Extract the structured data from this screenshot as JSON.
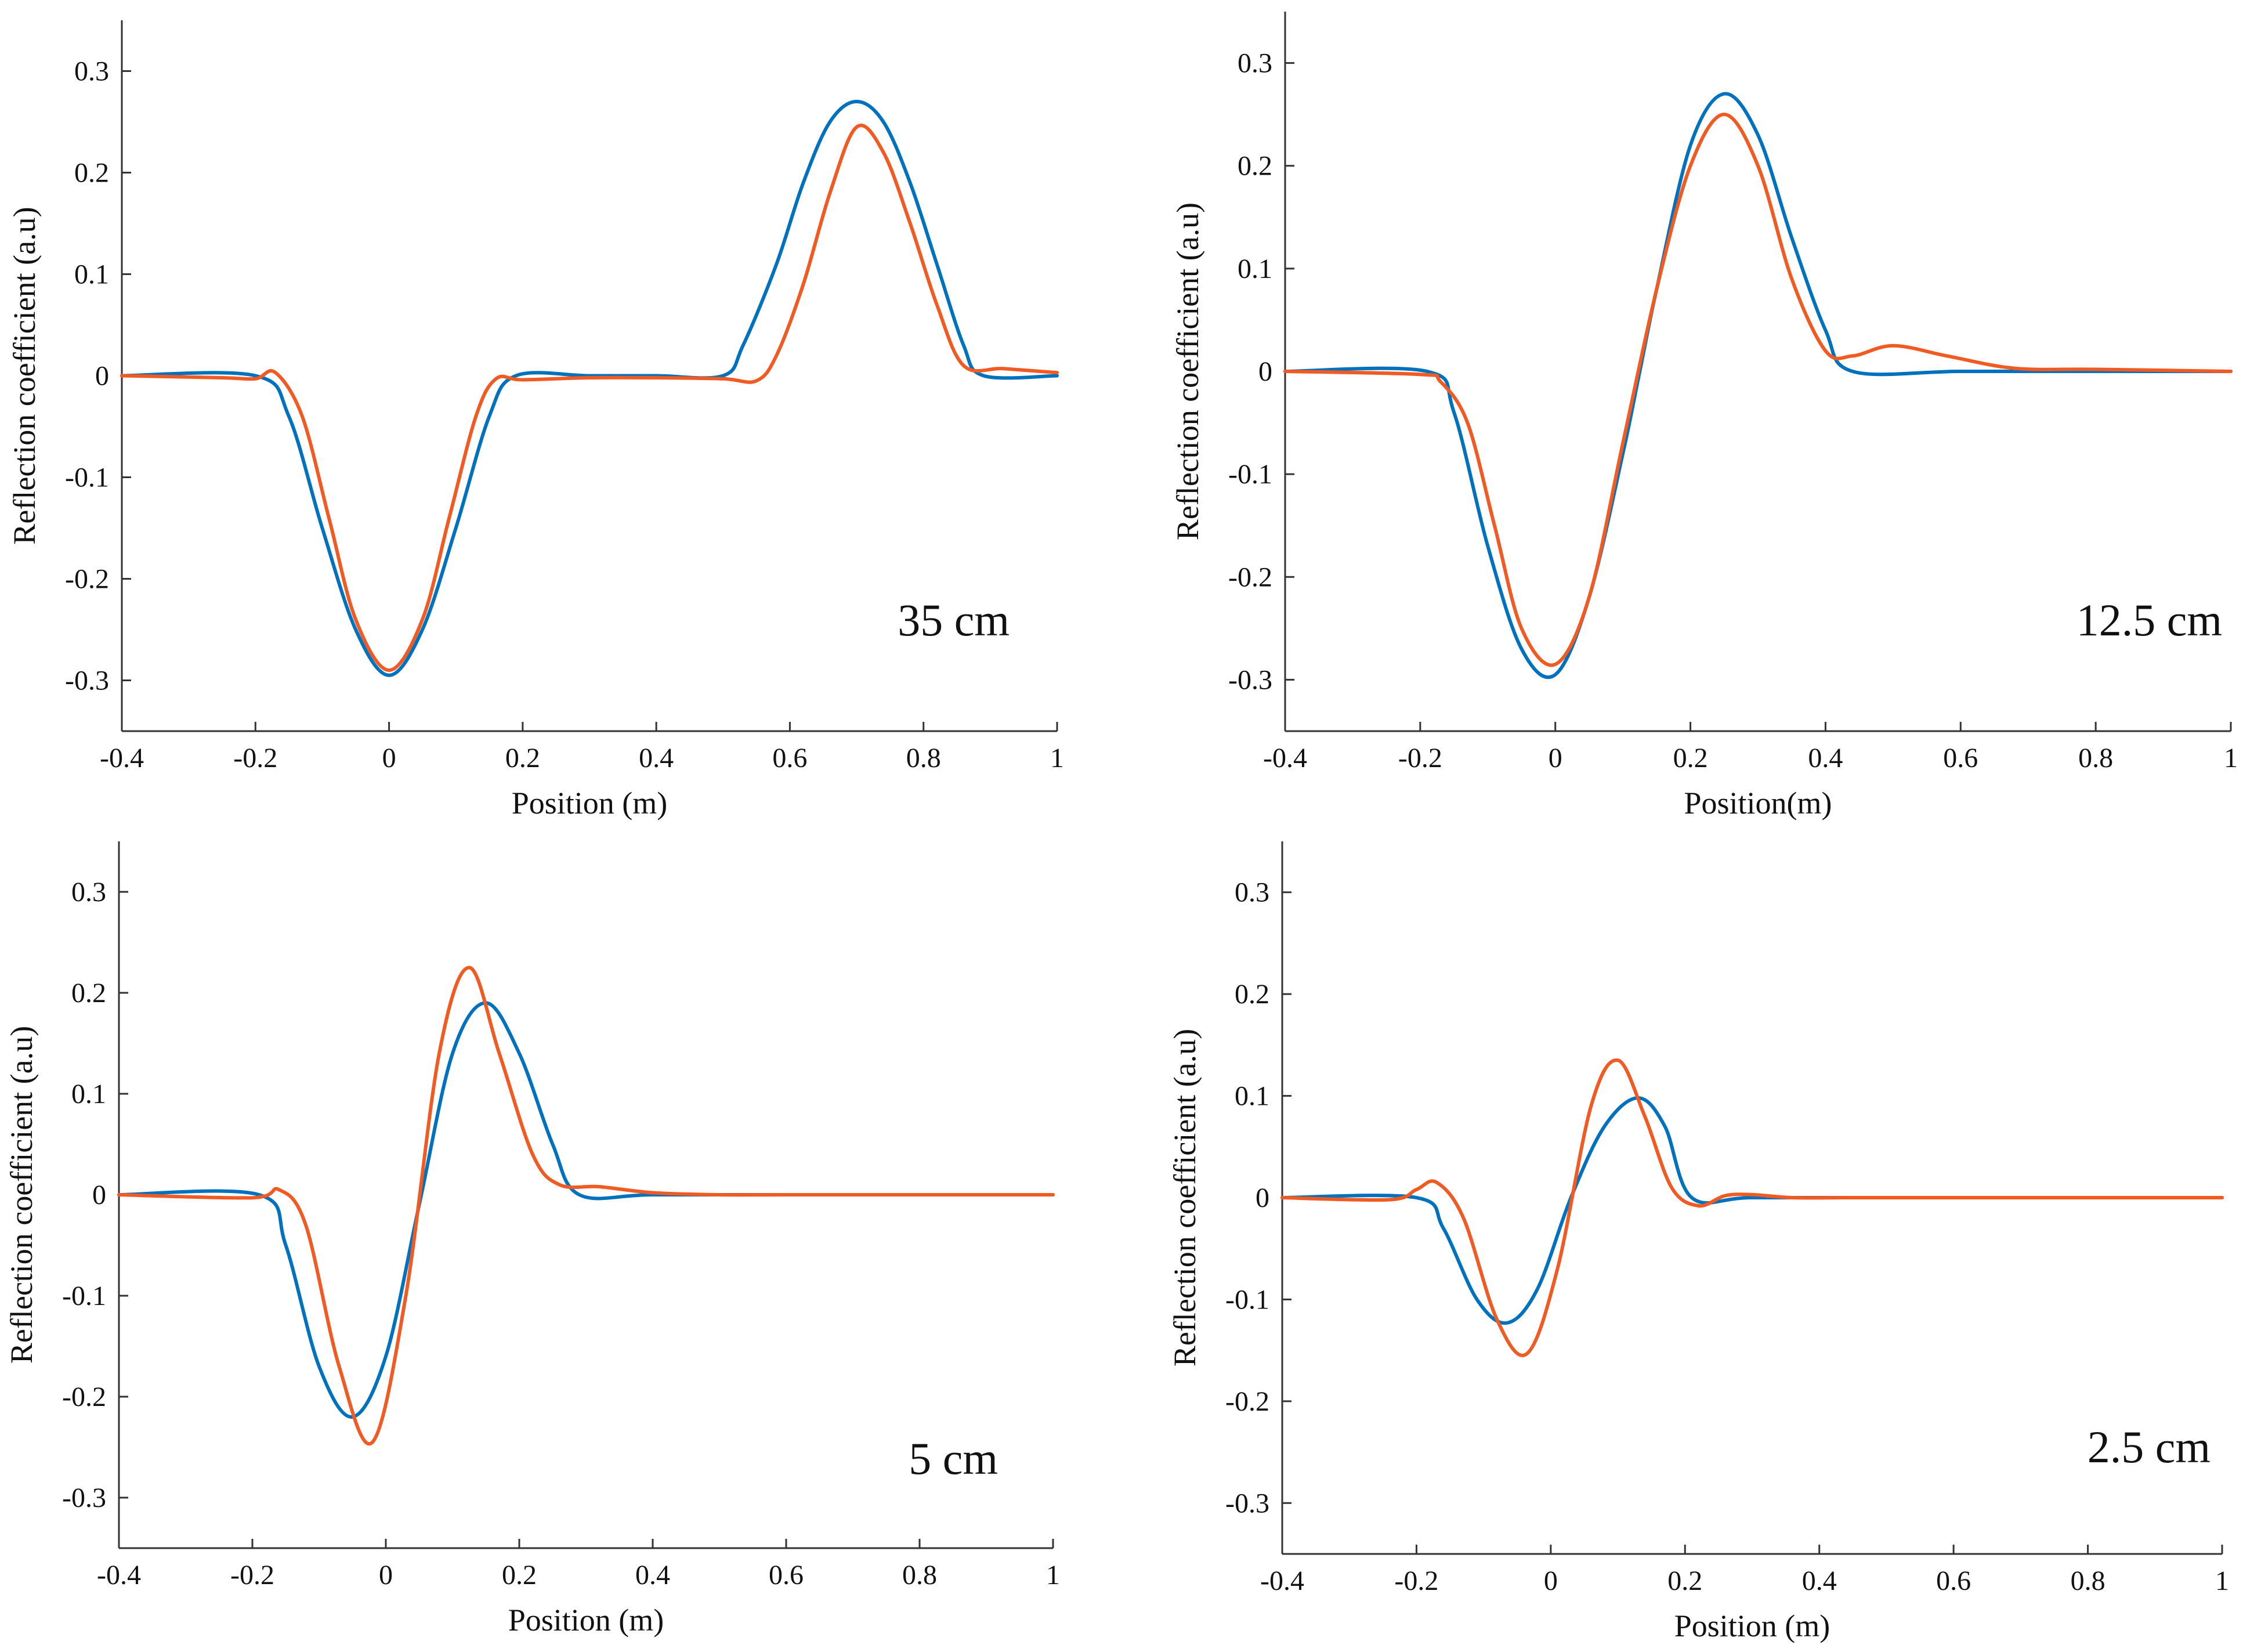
{
  "figure": {
    "colors": {
      "series_a": "#0072BD",
      "series_b": "#F05A23",
      "axis": "#333333"
    }
  },
  "chart_data": [
    {
      "type": "line",
      "annotation": "35 cm",
      "xlabel": "Position (m)",
      "ylabel": "Reflection coefficient (a.u)",
      "xlim": [
        -0.4,
        1
      ],
      "ylim": [
        -0.35,
        0.35
      ],
      "xticks": [
        -0.4,
        -0.2,
        0,
        0.2,
        0.4,
        0.6,
        0.8,
        1
      ],
      "xtick_labels": [
        "-0.4",
        "-0.2",
        "0",
        "0.2",
        "0.4",
        "0.6",
        "0.8",
        "1"
      ],
      "yticks": [
        -0.3,
        -0.2,
        -0.1,
        0,
        0.1,
        0.2,
        0.3
      ],
      "ytick_labels": [
        "-0.3",
        "-0.2",
        "-0.1",
        "0",
        "0.1",
        "0.2",
        "0.3"
      ],
      "series": [
        {
          "name": "series-blue",
          "color": "#0072BD",
          "x": [
            -0.4,
            -0.2,
            -0.15,
            -0.1,
            -0.05,
            0,
            0.05,
            0.1,
            0.15,
            0.19,
            0.3,
            0.4,
            0.5,
            0.53,
            0.58,
            0.62,
            0.66,
            0.7,
            0.74,
            0.78,
            0.82,
            0.86,
            0.89,
            1
          ],
          "y": [
            0,
            0,
            -0.04,
            -0.15,
            -0.25,
            -0.295,
            -0.25,
            -0.15,
            -0.04,
            0,
            0,
            0,
            0,
            0.03,
            0.11,
            0.19,
            0.25,
            0.27,
            0.25,
            0.19,
            0.11,
            0.03,
            0,
            0
          ]
        },
        {
          "name": "series-orange",
          "color": "#F05A23",
          "x": [
            -0.4,
            -0.25,
            -0.2,
            -0.17,
            -0.13,
            -0.09,
            -0.05,
            0,
            0.05,
            0.09,
            0.13,
            0.16,
            0.2,
            0.3,
            0.4,
            0.5,
            0.55,
            0.58,
            0.62,
            0.66,
            0.7,
            0.74,
            0.78,
            0.82,
            0.86,
            0.92,
            1
          ],
          "y": [
            0,
            -0.002,
            -0.003,
            0.003,
            -0.04,
            -0.14,
            -0.24,
            -0.29,
            -0.24,
            -0.14,
            -0.04,
            -0.003,
            -0.004,
            -0.002,
            -0.002,
            -0.003,
            -0.005,
            0.02,
            0.09,
            0.18,
            0.245,
            0.22,
            0.15,
            0.07,
            0.01,
            0.007,
            0.003
          ]
        }
      ]
    },
    {
      "type": "line",
      "annotation": "12.5 cm",
      "xlabel": "Position(m)",
      "ylabel": "Reflection coefficient (a.u)",
      "xlim": [
        -0.4,
        1
      ],
      "ylim": [
        -0.35,
        0.35
      ],
      "xticks": [
        -0.4,
        -0.2,
        0,
        0.2,
        0.4,
        0.6,
        0.8,
        1
      ],
      "xtick_labels": [
        "-0.4",
        "-0.2",
        "0",
        "0.2",
        "0.4",
        "0.6",
        "0.8",
        "1"
      ],
      "yticks": [
        -0.3,
        -0.2,
        -0.1,
        0,
        0.1,
        0.2,
        0.3
      ],
      "ytick_labels": [
        "-0.3",
        "-0.2",
        "-0.1",
        "0",
        "0.1",
        "0.2",
        "0.3"
      ],
      "series": [
        {
          "name": "series-blue",
          "color": "#0072BD",
          "x": [
            -0.4,
            -0.19,
            -0.15,
            -0.1,
            -0.05,
            0,
            0.05,
            0.1,
            0.125,
            0.15,
            0.2,
            0.25,
            0.3,
            0.35,
            0.4,
            0.44,
            0.6,
            0.8,
            1
          ],
          "y": [
            0,
            0,
            -0.04,
            -0.17,
            -0.27,
            -0.295,
            -0.22,
            -0.08,
            0,
            0.08,
            0.22,
            0.27,
            0.23,
            0.13,
            0.04,
            0,
            0,
            0,
            0
          ]
        },
        {
          "name": "series-orange",
          "color": "#F05A23",
          "x": [
            -0.4,
            -0.2,
            -0.17,
            -0.13,
            -0.09,
            -0.05,
            0,
            0.05,
            0.1,
            0.15,
            0.2,
            0.25,
            0.3,
            0.35,
            0.4,
            0.44,
            0.5,
            0.58,
            0.68,
            0.8,
            1
          ],
          "y": [
            0,
            -0.003,
            -0.01,
            -0.05,
            -0.15,
            -0.25,
            -0.285,
            -0.22,
            -0.07,
            0.08,
            0.2,
            0.25,
            0.2,
            0.09,
            0.02,
            0.015,
            0.025,
            0.015,
            0.003,
            0.002,
            0
          ]
        }
      ]
    },
    {
      "type": "line",
      "annotation": "5 cm",
      "xlabel": "Position (m)",
      "ylabel": "Reflection coefficient (a.u)",
      "xlim": [
        -0.4,
        1
      ],
      "ylim": [
        -0.35,
        0.35
      ],
      "xticks": [
        -0.4,
        -0.2,
        0,
        0.2,
        0.4,
        0.6,
        0.8,
        1
      ],
      "xtick_labels": [
        "-0.4",
        "-0.2",
        "0",
        "0.2",
        "0.4",
        "0.6",
        "0.8",
        "1"
      ],
      "yticks": [
        -0.3,
        -0.2,
        -0.1,
        0,
        0.1,
        0.2,
        0.3
      ],
      "ytick_labels": [
        "-0.3",
        "-0.2",
        "-0.1",
        "0",
        "0.1",
        "0.2",
        "0.3"
      ],
      "series": [
        {
          "name": "series-blue",
          "color": "#0072BD",
          "x": [
            -0.4,
            -0.19,
            -0.15,
            -0.1,
            -0.05,
            0,
            0.05,
            0.1,
            0.15,
            0.2,
            0.25,
            0.29,
            0.4,
            0.6,
            0.8,
            1
          ],
          "y": [
            0,
            0,
            -0.05,
            -0.17,
            -0.22,
            -0.16,
            -0.01,
            0.14,
            0.19,
            0.14,
            0.05,
            0,
            0,
            0,
            0,
            0
          ]
        },
        {
          "name": "series-orange",
          "color": "#F05A23",
          "x": [
            -0.4,
            -0.2,
            -0.16,
            -0.12,
            -0.07,
            -0.02,
            0.03,
            0.08,
            0.125,
            0.17,
            0.22,
            0.26,
            0.32,
            0.4,
            0.5,
            0.6,
            0.8,
            1
          ],
          "y": [
            0,
            -0.003,
            0.005,
            -0.03,
            -0.17,
            -0.245,
            -0.1,
            0.14,
            0.225,
            0.14,
            0.04,
            0.01,
            0.008,
            0.002,
            0,
            0,
            0,
            0
          ]
        }
      ]
    },
    {
      "type": "line",
      "annotation": "2.5 cm",
      "xlabel": "Position (m)",
      "ylabel": "Reflection coefficient (a.u)",
      "xlim": [
        -0.4,
        1
      ],
      "ylim": [
        -0.35,
        0.35
      ],
      "xticks": [
        -0.4,
        -0.2,
        0,
        0.2,
        0.4,
        0.6,
        0.8,
        1
      ],
      "xtick_labels": [
        "-0.4",
        "-0.2",
        "0",
        "0.2",
        "0.4",
        "0.6",
        "0.8",
        "1"
      ],
      "yticks": [
        -0.3,
        -0.2,
        -0.1,
        0,
        0.1,
        0.2,
        0.3
      ],
      "ytick_labels": [
        "-0.3",
        "-0.2",
        "-0.1",
        "0",
        "0.1",
        "0.2",
        "0.3"
      ],
      "series": [
        {
          "name": "series-blue",
          "color": "#0072BD",
          "x": [
            -0.4,
            -0.2,
            -0.16,
            -0.11,
            -0.065,
            -0.02,
            0.03,
            0.08,
            0.13,
            0.17,
            0.21,
            0.3,
            0.5,
            0.8,
            1
          ],
          "y": [
            0,
            0,
            -0.03,
            -0.1,
            -0.123,
            -0.09,
            0,
            0.07,
            0.098,
            0.07,
            0,
            0,
            0,
            0,
            0
          ]
        },
        {
          "name": "series-orange",
          "color": "#F05A23",
          "x": [
            -0.4,
            -0.24,
            -0.2,
            -0.17,
            -0.13,
            -0.08,
            -0.035,
            0.01,
            0.06,
            0.1,
            0.14,
            0.18,
            0.22,
            0.26,
            0.3,
            0.36,
            0.45,
            0.6,
            0.8,
            1
          ],
          "y": [
            0,
            -0.002,
            0.008,
            0.015,
            -0.02,
            -0.12,
            -0.153,
            -0.07,
            0.09,
            0.135,
            0.08,
            0.01,
            -0.008,
            0.002,
            0.003,
            0,
            0,
            0,
            0,
            0
          ]
        }
      ]
    }
  ]
}
